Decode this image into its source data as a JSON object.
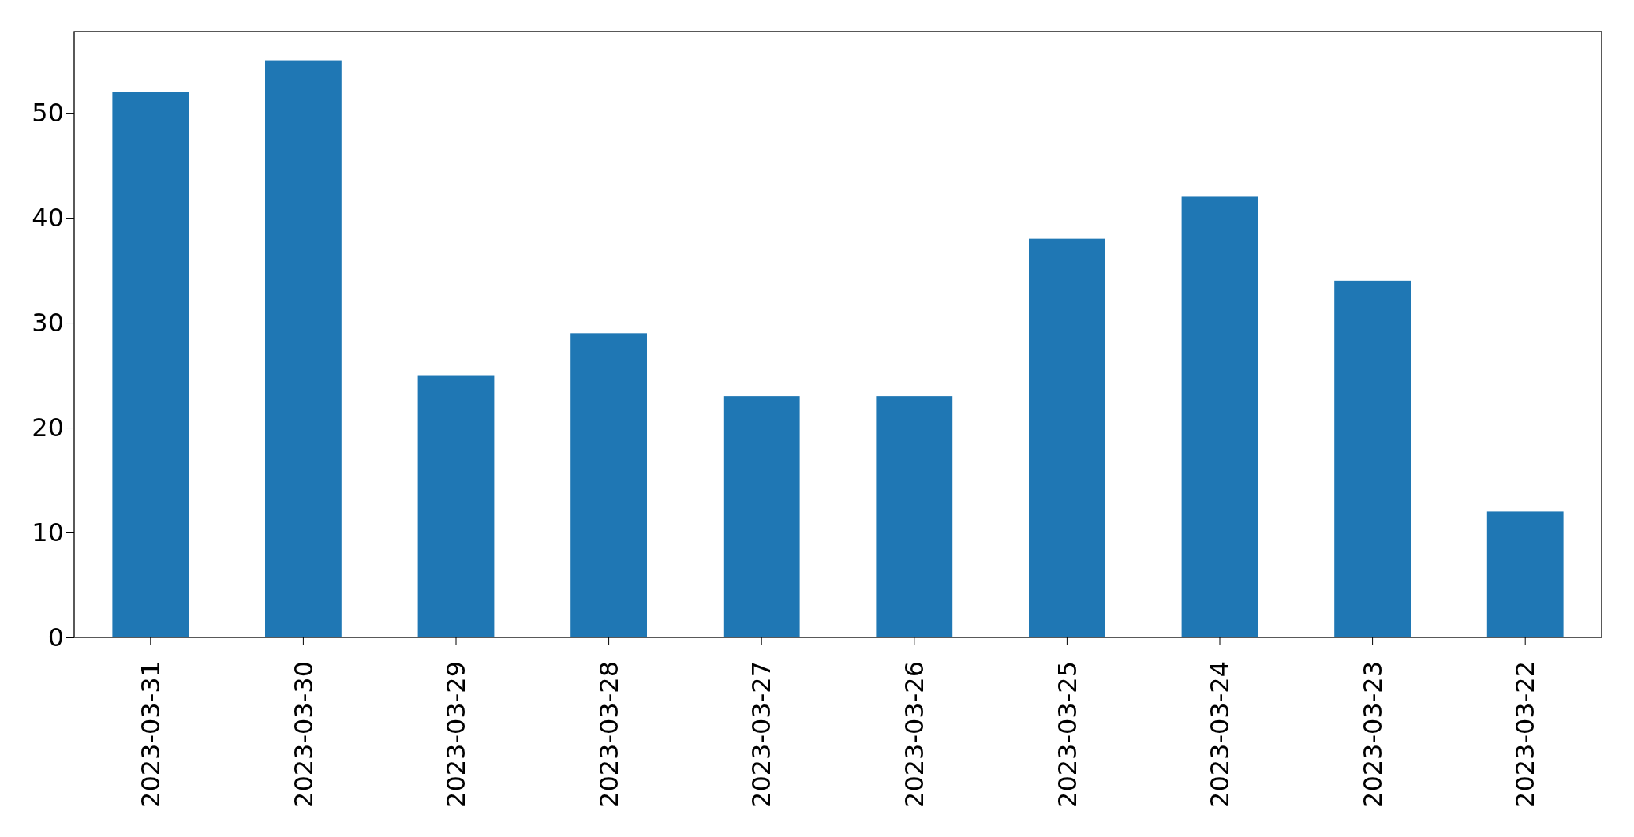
{
  "chart_data": {
    "type": "bar",
    "categories": [
      "2023-03-31",
      "2023-03-30",
      "2023-03-29",
      "2023-03-28",
      "2023-03-27",
      "2023-03-26",
      "2023-03-25",
      "2023-03-24",
      "2023-03-23",
      "2023-03-22"
    ],
    "values": [
      52,
      55,
      25,
      29,
      23,
      23,
      38,
      42,
      34,
      12
    ],
    "color": "#1f77b4",
    "ylim": [
      0,
      57.75
    ],
    "yticks": [
      0,
      10,
      20,
      30,
      40,
      50
    ]
  }
}
